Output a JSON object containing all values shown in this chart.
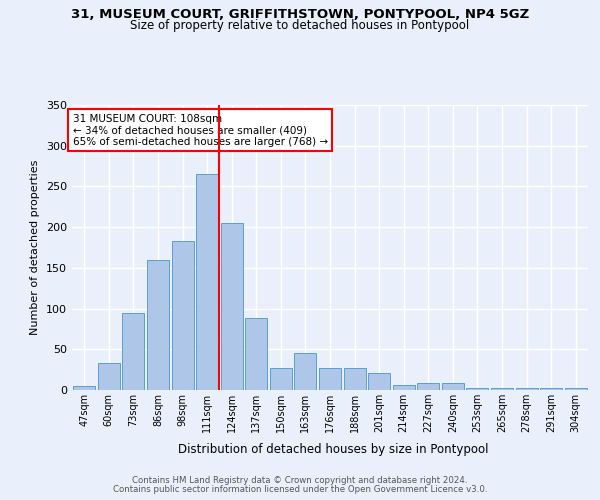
{
  "title1": "31, MUSEUM COURT, GRIFFITHSTOWN, PONTYPOOL, NP4 5GZ",
  "title2": "Size of property relative to detached houses in Pontypool",
  "xlabel": "Distribution of detached houses by size in Pontypool",
  "ylabel": "Number of detached properties",
  "categories": [
    "47sqm",
    "60sqm",
    "73sqm",
    "86sqm",
    "98sqm",
    "111sqm",
    "124sqm",
    "137sqm",
    "150sqm",
    "163sqm",
    "176sqm",
    "188sqm",
    "201sqm",
    "214sqm",
    "227sqm",
    "240sqm",
    "253sqm",
    "265sqm",
    "278sqm",
    "291sqm",
    "304sqm"
  ],
  "values": [
    5,
    33,
    95,
    160,
    183,
    265,
    205,
    88,
    27,
    46,
    27,
    27,
    21,
    6,
    9,
    9,
    3,
    3,
    2,
    3,
    3
  ],
  "bar_color": "#aec6e8",
  "bar_edge_color": "#5a9fd4",
  "background_color": "#eaf0fb",
  "grid_color": "#ffffff",
  "vline_x": 5.5,
  "vline_color": "red",
  "annotation_text": "31 MUSEUM COURT: 108sqm\n← 34% of detached houses are smaller (409)\n65% of semi-detached houses are larger (768) →",
  "annotation_box_color": "white",
  "annotation_box_edge": "red",
  "footer1": "Contains HM Land Registry data © Crown copyright and database right 2024.",
  "footer2": "Contains public sector information licensed under the Open Government Licence v3.0.",
  "ylim": [
    0,
    350
  ],
  "yticks": [
    0,
    50,
    100,
    150,
    200,
    250,
    300,
    350
  ]
}
